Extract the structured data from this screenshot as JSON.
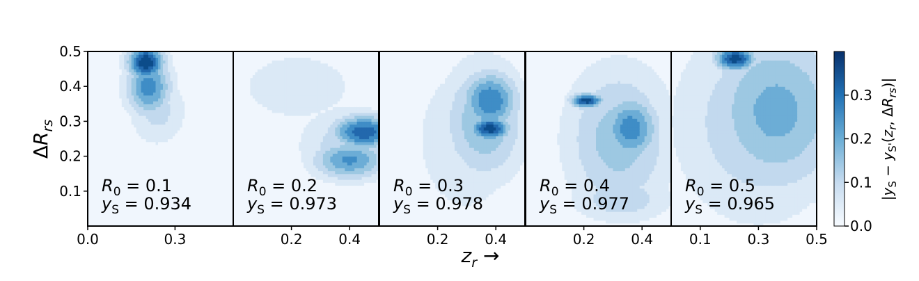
{
  "chart_data": {
    "type": "heatmap",
    "shared_ylabel": "ΔR_rs",
    "shared_xlabel": "z_r →",
    "ylim": [
      0.0,
      0.5
    ],
    "yticks": [
      0.1,
      0.2,
      0.3,
      0.4,
      0.5
    ],
    "colorbar": {
      "label": "|y_S − y_S'(z_r, ΔR_rs)|",
      "range": [
        0.0,
        0.4
      ],
      "ticks": [
        0.0,
        0.1,
        0.2,
        0.3
      ],
      "colormap": "Blues"
    },
    "panels": [
      {
        "R0": "0.1",
        "ys": "0.934",
        "xlim": [
          0.0,
          0.5
        ],
        "xticks": [
          "0.0",
          "0.3"
        ],
        "xtick_values": [
          0.0,
          0.3
        ],
        "features": [
          {
            "x": 0.2,
            "y": 0.47,
            "v": 0.4,
            "sx": 0.045,
            "sy": 0.035
          },
          {
            "x": 0.21,
            "y": 0.4,
            "v": 0.28,
            "sx": 0.055,
            "sy": 0.06
          },
          {
            "x": 0.24,
            "y": 0.33,
            "v": 0.12,
            "sx": 0.07,
            "sy": 0.07
          }
        ]
      },
      {
        "R0": "0.2",
        "ys": "0.973",
        "xlim": [
          0.0,
          0.5
        ],
        "xticks": [
          "0.2",
          "0.4"
        ],
        "xtick_values": [
          0.2,
          0.4
        ],
        "features": [
          {
            "x": 0.45,
            "y": 0.27,
            "v": 0.34,
            "sx": 0.08,
            "sy": 0.035
          },
          {
            "x": 0.4,
            "y": 0.19,
            "v": 0.26,
            "sx": 0.09,
            "sy": 0.04
          },
          {
            "x": 0.4,
            "y": 0.23,
            "v": 0.14,
            "sx": 0.12,
            "sy": 0.08
          },
          {
            "x": 0.22,
            "y": 0.4,
            "v": 0.07,
            "sx": 0.2,
            "sy": 0.1
          }
        ]
      },
      {
        "R0": "0.3",
        "ys": "0.978",
        "xlim": [
          0.0,
          0.5
        ],
        "xticks": [
          "0.2",
          "0.4"
        ],
        "xtick_values": [
          0.2,
          0.4
        ],
        "features": [
          {
            "x": 0.38,
            "y": 0.28,
            "v": 0.38,
            "sx": 0.05,
            "sy": 0.025
          },
          {
            "x": 0.38,
            "y": 0.36,
            "v": 0.3,
            "sx": 0.07,
            "sy": 0.06
          },
          {
            "x": 0.36,
            "y": 0.3,
            "v": 0.2,
            "sx": 0.1,
            "sy": 0.12
          },
          {
            "x": 0.3,
            "y": 0.25,
            "v": 0.1,
            "sx": 0.13,
            "sy": 0.16
          }
        ]
      },
      {
        "R0": "0.4",
        "ys": "0.977",
        "xlim": [
          0.0,
          0.5
        ],
        "xticks": [
          "0.2",
          "0.4"
        ],
        "xtick_values": [
          0.2,
          0.4
        ],
        "features": [
          {
            "x": 0.21,
            "y": 0.36,
            "v": 0.38,
            "sx": 0.04,
            "sy": 0.015
          },
          {
            "x": 0.36,
            "y": 0.28,
            "v": 0.28,
            "sx": 0.07,
            "sy": 0.07
          },
          {
            "x": 0.32,
            "y": 0.25,
            "v": 0.18,
            "sx": 0.13,
            "sy": 0.15
          },
          {
            "x": 0.33,
            "y": 0.08,
            "v": 0.14,
            "sx": 0.12,
            "sy": 0.05
          }
        ]
      },
      {
        "R0": "0.5",
        "ys": "0.965",
        "xlim": [
          0.0,
          0.5
        ],
        "xticks": [
          "0.1",
          "0.3",
          "0.5"
        ],
        "xtick_values": [
          0.1,
          0.3,
          0.5
        ],
        "features": [
          {
            "x": 0.22,
            "y": 0.48,
            "v": 0.38,
            "sx": 0.05,
            "sy": 0.025
          },
          {
            "x": 0.36,
            "y": 0.33,
            "v": 0.22,
            "sx": 0.17,
            "sy": 0.17
          },
          {
            "x": 0.3,
            "y": 0.3,
            "v": 0.15,
            "sx": 0.2,
            "sy": 0.2
          }
        ]
      }
    ]
  }
}
